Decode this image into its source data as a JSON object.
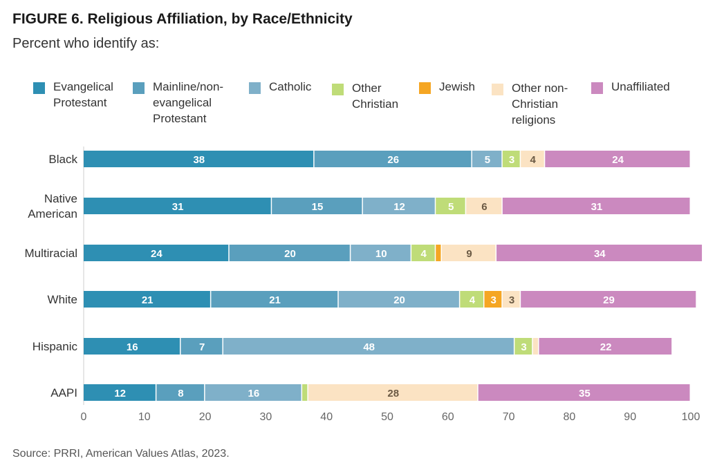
{
  "header": {
    "title": "FIGURE 6. Religious Affiliation, by Race/Ethnicity",
    "subtitle": "Percent who identify as:"
  },
  "footer": {
    "source": "Source: PRRI, American Values Atlas, 2023."
  },
  "chart_data": {
    "type": "bar",
    "orientation": "horizontal",
    "stacked": true,
    "title": "FIGURE 6. Religious Affiliation, by Race/Ethnicity",
    "subtitle": "Percent who identify as:",
    "xlabel": "",
    "ylabel": "",
    "xlim": [
      0,
      100
    ],
    "xticks": [
      0,
      10,
      20,
      30,
      40,
      50,
      60,
      70,
      80,
      90,
      100
    ],
    "grid": false,
    "legend_position": "top",
    "categories": [
      "Black",
      "Native American",
      "Multiracial",
      "White",
      "Hispanic",
      "AAPI"
    ],
    "series": [
      {
        "name": "Evangelical Protestant",
        "color": "#2e8fb3",
        "label_color": "#ffffff",
        "values": [
          38,
          31,
          24,
          21,
          16,
          12
        ]
      },
      {
        "name": "Mainline/non-evangelical Protestant",
        "color": "#5a9fbd",
        "label_color": "#ffffff",
        "values": [
          26,
          15,
          20,
          21,
          7,
          8
        ]
      },
      {
        "name": "Catholic",
        "color": "#7fb0c9",
        "label_color": "#ffffff",
        "values": [
          5,
          12,
          10,
          20,
          48,
          16
        ]
      },
      {
        "name": "Other Christian",
        "color": "#bfdc78",
        "label_color": "#ffffff",
        "values": [
          3,
          5,
          4,
          4,
          3,
          1
        ]
      },
      {
        "name": "Jewish",
        "color": "#f5a623",
        "label_color": "#ffffff",
        "values": [
          0,
          0,
          1,
          3,
          0,
          0
        ]
      },
      {
        "name": "Other non-Christian religions",
        "color": "#fbe3c3",
        "label_color": "#6b5a44",
        "values": [
          4,
          6,
          9,
          3,
          1,
          28
        ]
      },
      {
        "name": "Unaffiliated",
        "color": "#cb89bf",
        "label_color": "#ffffff",
        "values": [
          24,
          31,
          34,
          29,
          22,
          35
        ]
      }
    ],
    "data_labels": [
      [
        "38",
        "26",
        "5",
        "3",
        "",
        "4",
        "24"
      ],
      [
        "31",
        "15",
        "12",
        "5",
        "",
        "6",
        "31"
      ],
      [
        "24",
        "20",
        "10",
        "4",
        "",
        "9",
        "34"
      ],
      [
        "21",
        "21",
        "20",
        "4",
        "3",
        "3",
        "29"
      ],
      [
        "16",
        "7",
        "48",
        "3",
        "",
        "",
        "22"
      ],
      [
        "12",
        "8",
        "16",
        "",
        "",
        "28",
        "35"
      ]
    ]
  },
  "legend": {
    "items": [
      {
        "label": "Evangelical\nProtestant",
        "color": "#2e8fb3"
      },
      {
        "label": "Mainline/non-\nevangelical\nProtestant",
        "color": "#5a9fbd"
      },
      {
        "label": "Catholic",
        "color": "#7fb0c9"
      },
      {
        "label": "Other\nChristian",
        "color": "#bfdc78"
      },
      {
        "label": "Jewish",
        "color": "#f5a623"
      },
      {
        "label": "Other non-\nChristian\nreligions",
        "color": "#fbe3c3"
      },
      {
        "label": "Unaffiliated",
        "color": "#cb89bf"
      }
    ]
  }
}
